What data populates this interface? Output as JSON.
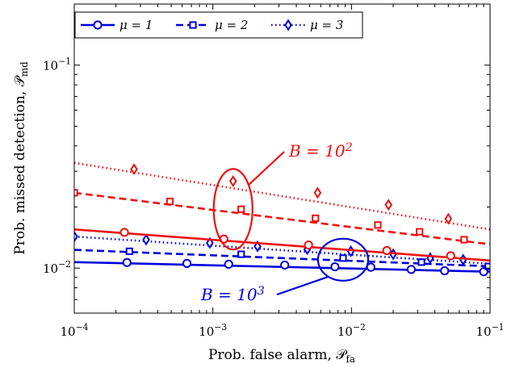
{
  "chart_data": {
    "type": "line",
    "title": "",
    "xlabel": "Prob. false alarm, 𝒫_fa",
    "ylabel": "Prob. missed detection, 𝒫_md",
    "x_scale": "log",
    "y_scale": "log",
    "xlim": [
      0.0001,
      0.1
    ],
    "ylim": [
      0.006,
      0.2
    ],
    "xticks": [
      {
        "value": 0.0001,
        "label": "10^-4"
      },
      {
        "value": 0.001,
        "label": "10^-3"
      },
      {
        "value": 0.01,
        "label": "10^-2"
      },
      {
        "value": 0.1,
        "label": "10^-1"
      }
    ],
    "yticks": [
      {
        "value": 0.01,
        "label": "10^-2"
      },
      {
        "value": 0.1,
        "label": "10^-1"
      }
    ],
    "grid": false,
    "legend": {
      "placement": "top-left",
      "entries": [
        "μ = 1",
        "μ = 2",
        "μ = 3"
      ]
    },
    "series": [
      {
        "name": "μ = 1",
        "group": "B = 10^3",
        "color": "#0000dd",
        "dash": "solid",
        "marker": "circle",
        "x": [
          0.0001,
          0.1
        ],
        "y": [
          0.0107,
          0.0096
        ],
        "marker_x": [
          0.00024,
          0.00065,
          0.0013,
          0.0033,
          0.0076,
          0.0138,
          0.027,
          0.047,
          0.09
        ],
        "marker_y": [
          0.01065,
          0.01055,
          0.01045,
          0.01035,
          0.01015,
          0.0101,
          0.00985,
          0.0097,
          0.0096
        ]
      },
      {
        "name": "μ = 2",
        "group": "B = 10^3",
        "color": "#0000dd",
        "dash": "dashed",
        "marker": "square",
        "x": [
          0.0001,
          0.1
        ],
        "y": [
          0.0123,
          0.0102
        ],
        "marker_x": [
          0.00025,
          0.0016,
          0.0087,
          0.032,
          0.097
        ],
        "marker_y": [
          0.0121,
          0.0117,
          0.0112,
          0.0107,
          0.0102
        ]
      },
      {
        "name": "μ = 3",
        "group": "B = 10^3",
        "color": "#0000dd",
        "dash": "dotted",
        "marker": "diamond",
        "x": [
          0.0001,
          0.1
        ],
        "y": [
          0.0143,
          0.0105
        ],
        "marker_x": [
          0.0001,
          0.00033,
          0.00095,
          0.0021,
          0.0048,
          0.0099,
          0.02,
          0.037,
          0.064
        ],
        "marker_y": [
          0.0143,
          0.0138,
          0.0133,
          0.0128,
          0.0124,
          0.0121,
          0.0117,
          0.0112,
          0.011
        ]
      },
      {
        "name": "μ = 1",
        "group": "B = 10^2",
        "color": "#ee1111",
        "dash": "solid",
        "marker": "circle",
        "x": [
          0.0001,
          0.1
        ],
        "y": [
          0.0155,
          0.0109
        ],
        "marker_x": [
          0.00023,
          0.0012,
          0.0049,
          0.018,
          0.052
        ],
        "marker_y": [
          0.015,
          0.0139,
          0.013,
          0.0122,
          0.0115
        ]
      },
      {
        "name": "μ = 2",
        "group": "B = 10^2",
        "color": "#ee1111",
        "dash": "dashed",
        "marker": "square",
        "x": [
          0.0001,
          0.1
        ],
        "y": [
          0.0235,
          0.0131
        ],
        "marker_x": [
          0.0001,
          0.00049,
          0.0016,
          0.0055,
          0.0155,
          0.031,
          0.065
        ],
        "marker_y": [
          0.0235,
          0.0213,
          0.0195,
          0.0176,
          0.0163,
          0.0151,
          0.0138
        ]
      },
      {
        "name": "μ = 3",
        "group": "B = 10^2",
        "color": "#ee1111",
        "dash": "dotted",
        "marker": "diamond",
        "x": [
          0.0001,
          0.1
        ],
        "y": [
          0.033,
          0.0155
        ],
        "marker_x": [
          0.00027,
          0.0014,
          0.0057,
          0.0185,
          0.05
        ],
        "marker_y": [
          0.0307,
          0.0268,
          0.0235,
          0.0205,
          0.0175
        ]
      }
    ],
    "annotations": [
      {
        "text": "B = 10²",
        "color": "#ee1111",
        "ellipse_x": 0.0014,
        "ellipse_y": 0.0195,
        "target": "B = 10^2"
      },
      {
        "text": "B = 10³",
        "color": "#0000dd",
        "ellipse_x": 0.0087,
        "ellipse_y": 0.011,
        "target": "B = 10^3"
      }
    ]
  }
}
